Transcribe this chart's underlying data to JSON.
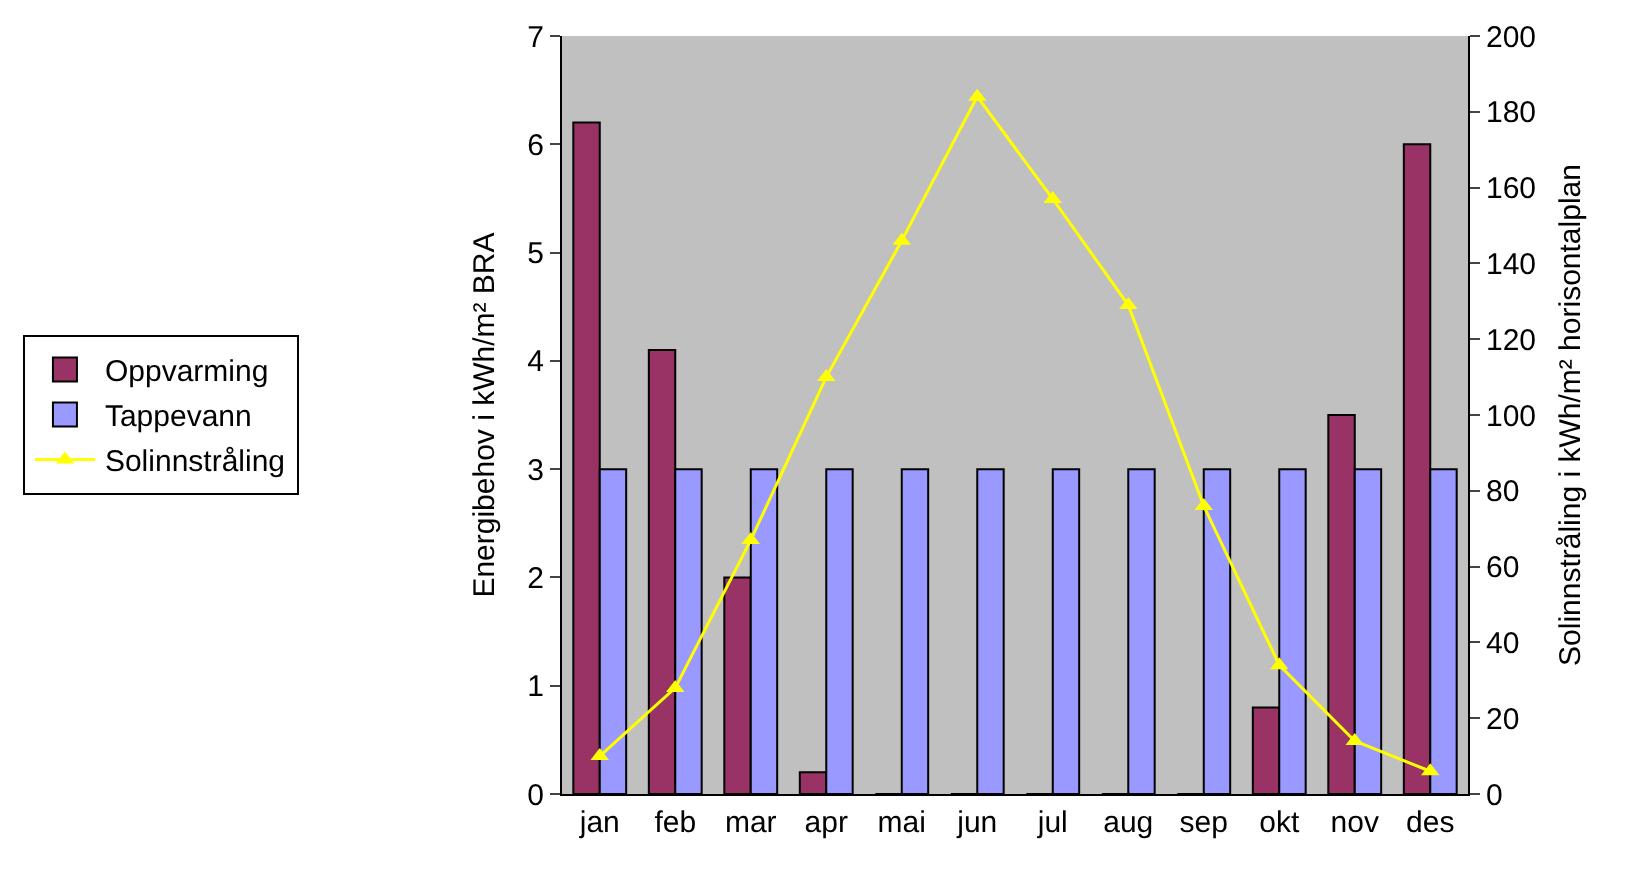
{
  "chart_data": {
    "type": "bar",
    "categories": [
      "jan",
      "feb",
      "mar",
      "apr",
      "mai",
      "jun",
      "jul",
      "aug",
      "sep",
      "okt",
      "nov",
      "des"
    ],
    "ylabel": "Energibehov i kWh/m² BRA",
    "y2label": "Solinnstråling i kWh/m² horisontalplan",
    "series": [
      {
        "name": "Oppvarming",
        "color": "#993366",
        "values": [
          6.2,
          4.1,
          2.0,
          0.2,
          0,
          0,
          0,
          0,
          0,
          0.8,
          3.5,
          6.0
        ]
      },
      {
        "name": "Tappevann",
        "color": "#9999ff",
        "values": [
          3,
          3,
          3,
          3,
          3,
          3,
          3,
          3,
          3,
          3,
          3,
          3
        ]
      },
      {
        "name": "Solinnstråling",
        "type": "line",
        "axis": "y2",
        "color": "#ffff00",
        "values": [
          10,
          28,
          67,
          110,
          146,
          184,
          157,
          129,
          76,
          34,
          14,
          6
        ]
      }
    ],
    "ylim": [
      0,
      7
    ],
    "yticks": [
      0,
      1,
      2,
      3,
      4,
      5,
      6,
      7
    ],
    "y2lim": [
      0,
      200
    ],
    "y2ticks": [
      0,
      20,
      40,
      60,
      80,
      100,
      120,
      140,
      160,
      180,
      200
    ],
    "grid": false,
    "legend": "left",
    "marker": "triangle"
  }
}
